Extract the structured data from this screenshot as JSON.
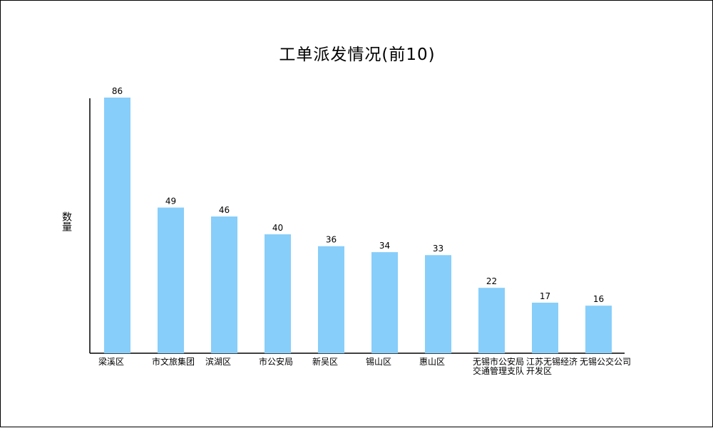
{
  "chart_data": {
    "type": "bar",
    "title": "工单派发情况(前10)",
    "xlabel": "",
    "ylabel": "数量",
    "categories": [
      "梁溪区",
      "市文旅集团",
      "滨湖区",
      "市公安局",
      "新吴区",
      "锡山区",
      "惠山区",
      "无锡市公安局交通管理支队",
      "江苏无锡经济开发区",
      "无锡公交公司"
    ],
    "values": [
      86,
      49,
      46,
      40,
      36,
      34,
      33,
      22,
      17,
      16
    ],
    "data_labels": [
      "86",
      "49",
      "46",
      "40",
      "36",
      "34",
      "33",
      "22",
      "17",
      "16"
    ],
    "ylim": [
      0,
      86
    ],
    "grid": false,
    "legend": "none",
    "bar_color": "#87CEFA",
    "axis_color": "#000000"
  }
}
